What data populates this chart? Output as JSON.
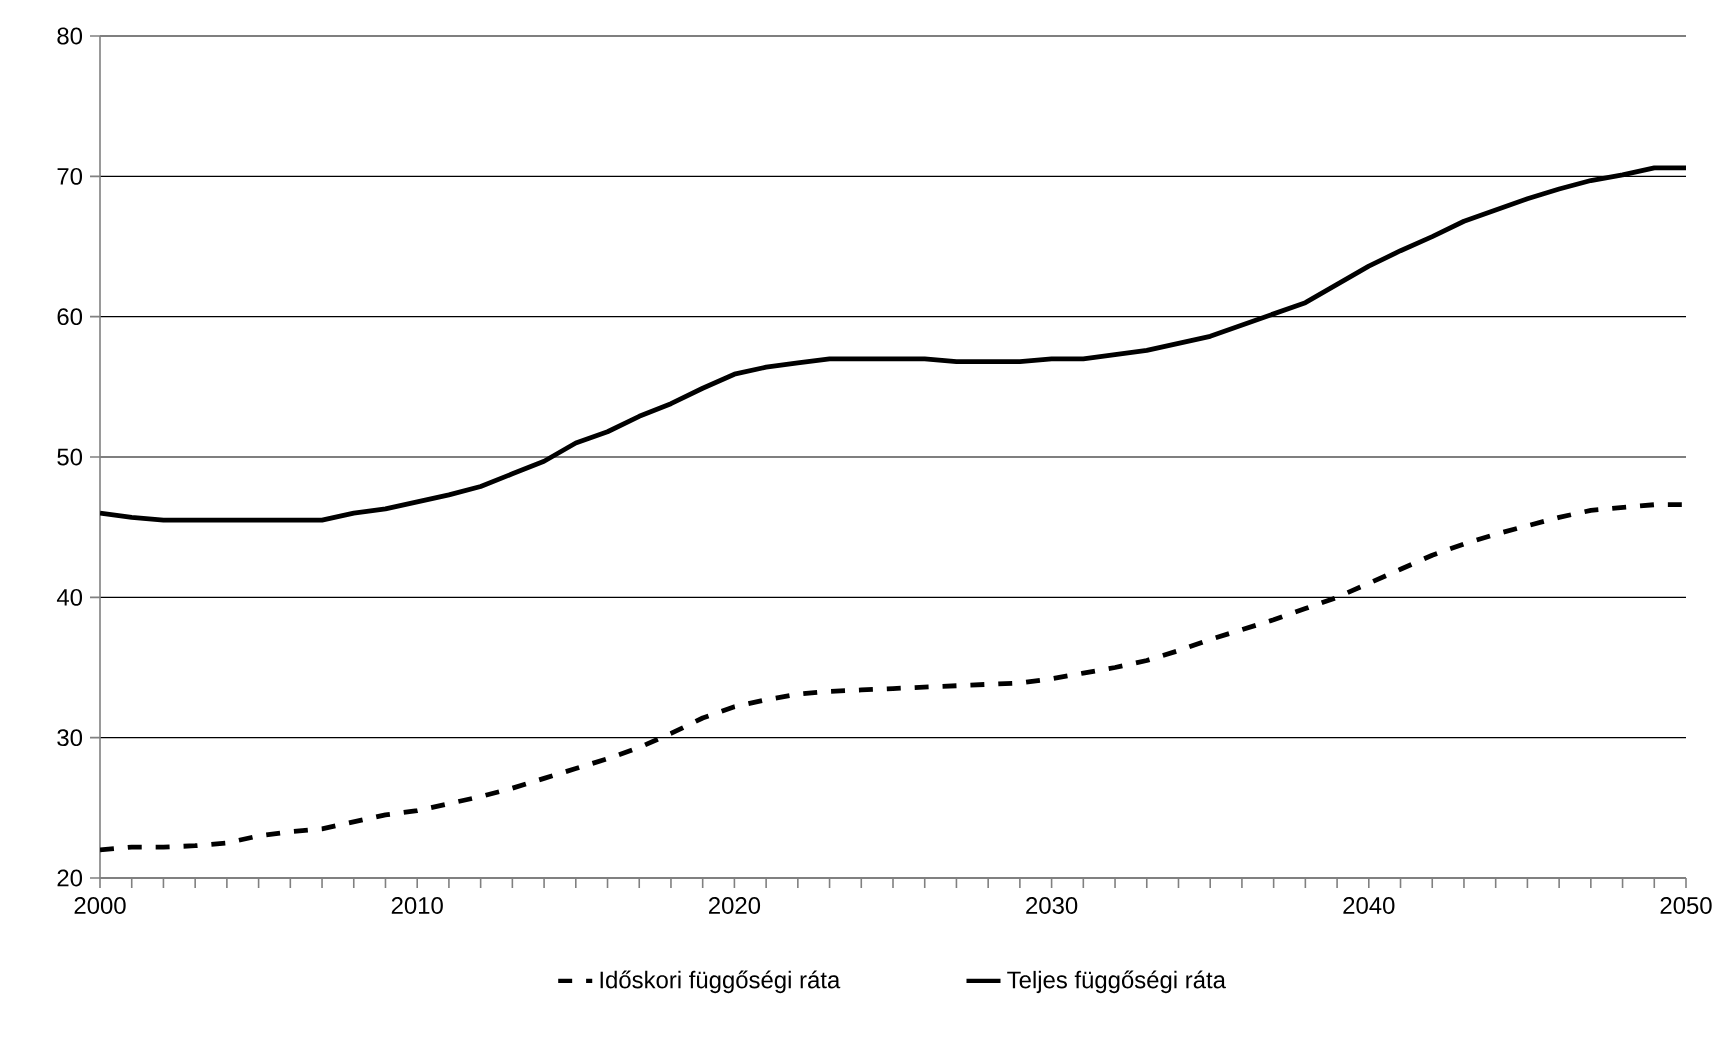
{
  "chart_data": {
    "type": "line",
    "x": [
      2000,
      2001,
      2002,
      2003,
      2004,
      2005,
      2006,
      2007,
      2008,
      2009,
      2010,
      2011,
      2012,
      2013,
      2014,
      2015,
      2016,
      2017,
      2018,
      2019,
      2020,
      2021,
      2022,
      2023,
      2024,
      2025,
      2026,
      2027,
      2028,
      2029,
      2030,
      2031,
      2032,
      2033,
      2034,
      2035,
      2036,
      2037,
      2038,
      2039,
      2040,
      2041,
      2042,
      2043,
      2044,
      2045,
      2046,
      2047,
      2048,
      2049,
      2050
    ],
    "series": [
      {
        "name": "Időskori függőségi ráta",
        "color": "#000000",
        "line_style": "dashed",
        "values": [
          22,
          22.2,
          22.2,
          22.3,
          22.5,
          23,
          23.3,
          23.5,
          24,
          24.5,
          24.8,
          25.3,
          25.8,
          26.4,
          27.1,
          27.8,
          28.5,
          29.3,
          30.3,
          31.4,
          32.2,
          32.7,
          33.1,
          33.3,
          33.4,
          33.5,
          33.6,
          33.7,
          33.8,
          33.9,
          34.2,
          34.6,
          35,
          35.5,
          36.2,
          37,
          37.7,
          38.4,
          39.2,
          40,
          41,
          42,
          43,
          43.8,
          44.5,
          45.1,
          45.7,
          46.2,
          46.4,
          46.6,
          46.6
        ]
      },
      {
        "name": "Teljes függőségi ráta",
        "color": "#000000",
        "line_style": "solid",
        "values": [
          46,
          45.7,
          45.5,
          45.5,
          45.5,
          45.5,
          45.5,
          45.5,
          46,
          46.3,
          46.8,
          47.3,
          47.9,
          48.8,
          49.7,
          51,
          51.8,
          52.9,
          53.8,
          54.9,
          55.9,
          56.4,
          56.7,
          57,
          57,
          57,
          57,
          56.8,
          56.8,
          56.8,
          57,
          57,
          57.3,
          57.6,
          58.1,
          58.6,
          59.4,
          60.2,
          61,
          62.3,
          63.6,
          64.7,
          65.7,
          66.8,
          67.6,
          68.4,
          69.1,
          69.7,
          70.1,
          70.6,
          70.6
        ]
      }
    ],
    "xlim": [
      2000,
      2050
    ],
    "xticks": [
      2000,
      {
        "value": 2001,
        "label": null
      },
      {
        "value": 2002,
        "label": null
      },
      {
        "value": 2003,
        "label": null
      },
      {
        "value": 2004,
        "label": null
      },
      {
        "value": 2005,
        "label": null
      },
      {
        "value": 2006,
        "label": null
      },
      {
        "value": 2007,
        "label": null
      },
      {
        "value": 2008,
        "label": null
      },
      {
        "value": 2009,
        "label": null
      },
      2010,
      {
        "value": 2011,
        "label": null
      },
      {
        "value": 2012,
        "label": null
      },
      {
        "value": 2013,
        "label": null
      },
      {
        "value": 2014,
        "label": null
      },
      {
        "value": 2015,
        "label": null
      },
      {
        "value": 2016,
        "label": null
      },
      {
        "value": 2017,
        "label": null
      },
      {
        "value": 2018,
        "label": null
      },
      {
        "value": 2019,
        "label": null
      },
      2020,
      {
        "value": 2021,
        "label": null
      },
      {
        "value": 2022,
        "label": null
      },
      {
        "value": 2023,
        "label": null
      },
      {
        "value": 2024,
        "label": null
      },
      {
        "value": 2025,
        "label": null
      },
      {
        "value": 2026,
        "label": null
      },
      {
        "value": 2027,
        "label": null
      },
      {
        "value": 2028,
        "label": null
      },
      {
        "value": 2029,
        "label": null
      },
      2030,
      {
        "value": 2031,
        "label": null
      },
      {
        "value": 2032,
        "label": null
      },
      {
        "value": 2033,
        "label": null
      },
      {
        "value": 2034,
        "label": null
      },
      {
        "value": 2035,
        "label": null
      },
      {
        "value": 2036,
        "label": null
      },
      {
        "value": 2037,
        "label": null
      },
      {
        "value": 2038,
        "label": null
      },
      {
        "value": 2039,
        "label": null
      },
      2040,
      {
        "value": 2041,
        "label": null
      },
      {
        "value": 2042,
        "label": null
      },
      {
        "value": 2043,
        "label": null
      },
      {
        "value": 2044,
        "label": null
      },
      {
        "value": 2045,
        "label": null
      },
      {
        "value": 2046,
        "label": null
      },
      {
        "value": 2047,
        "label": null
      },
      {
        "value": 2048,
        "label": null
      },
      {
        "value": 2049,
        "label": null
      },
      2050
    ],
    "ylim": [
      20,
      80
    ],
    "yticks": [
      20,
      30,
      40,
      50,
      60,
      70,
      80
    ],
    "grid": "y",
    "legend": "bottom",
    "marker": "none"
  }
}
